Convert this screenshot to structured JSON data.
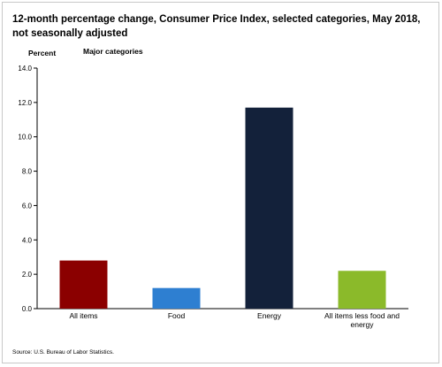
{
  "chart_data": {
    "type": "bar",
    "title": "12-month percentage change, Consumer Price Index, selected categories, May 2018, not seasonally adjusted",
    "ylabel": "Percent",
    "xlabel": "",
    "legend": "Major categories",
    "categories": [
      "All items",
      "Food",
      "Energy",
      "All items less food and energy"
    ],
    "values": [
      2.8,
      1.2,
      11.7,
      2.2
    ],
    "colors": [
      "#8b0000",
      "#2e7fd1",
      "#13213a",
      "#8bba2a"
    ],
    "ylim": [
      0,
      14
    ],
    "yticks": [
      "0.0",
      "2.0",
      "4.0",
      "6.0",
      "8.0",
      "10.0",
      "12.0",
      "14.0"
    ],
    "grid": false
  },
  "source": "Source: U.S. Bureau of Labor Statistics."
}
